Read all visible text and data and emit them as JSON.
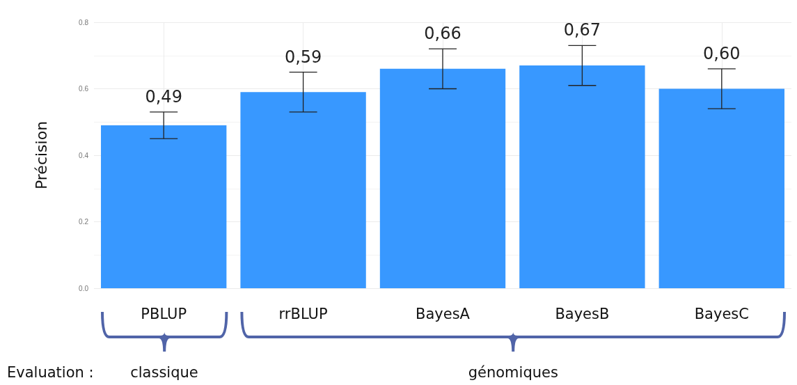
{
  "chart_data": {
    "type": "bar",
    "ylabel": "Précision",
    "categories": [
      "PBLUP",
      "rrBLUP",
      "BayesA",
      "BayesB",
      "BayesC"
    ],
    "values": [
      0.49,
      0.59,
      0.66,
      0.67,
      0.6
    ],
    "value_labels": [
      "0,49",
      "0,59",
      "0,66",
      "0,67",
      "0,60"
    ],
    "errors": [
      [
        0.45,
        0.53
      ],
      [
        0.53,
        0.65
      ],
      [
        0.6,
        0.72
      ],
      [
        0.61,
        0.73
      ],
      [
        0.54,
        0.66
      ]
    ],
    "color": "#3898ff",
    "ylim": [
      0,
      0.8
    ],
    "yticks": [
      {
        "value": 0,
        "label": "0.0"
      },
      0.2,
      0.4,
      0.6,
      0.8
    ],
    "grid": true,
    "annotations": [
      "Evaluation :",
      "classique",
      "génomiques"
    ]
  }
}
